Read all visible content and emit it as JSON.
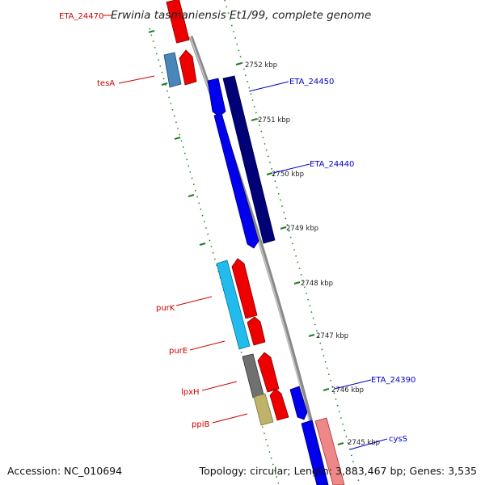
{
  "title": "Erwinia tasmaniensis Et1/99, complete genome",
  "footer": {
    "accession": "Accession: NC_010694",
    "summary": "Topology: circular; Length: 3,883,467 bp; Genes: 3,535"
  },
  "ticks": [
    "2752 kbp",
    "2751 kbp",
    "2750 kbp",
    "2749 kbp",
    "2748 kbp",
    "2747 kbp",
    "2746 kbp",
    "2745 kbp"
  ],
  "genes": {
    "eta24470": "ETA_24470",
    "tesA": "tesA",
    "eta24450": "ETA_24450",
    "eta24440": "ETA_24440",
    "purK": "purK",
    "purE": "purE",
    "lpxH": "lpxH",
    "ppiB": "ppiB",
    "eta24390": "ETA_24390",
    "cysS": "cysS"
  },
  "colors": {
    "backbone": "#8a8a8a",
    "tick": "#1e7f1e",
    "label_red": "#cc0000",
    "label_blue": "#0000cc",
    "gene_red": "#ee0000",
    "gene_blue": "#0000ee",
    "gene_navy": "#000077",
    "gene_cyan": "#22bbee",
    "gene_steel": "#4a86b8",
    "gene_gray": "#707070",
    "gene_khaki": "#bdb46a",
    "gene_pink": "#ee8888"
  }
}
